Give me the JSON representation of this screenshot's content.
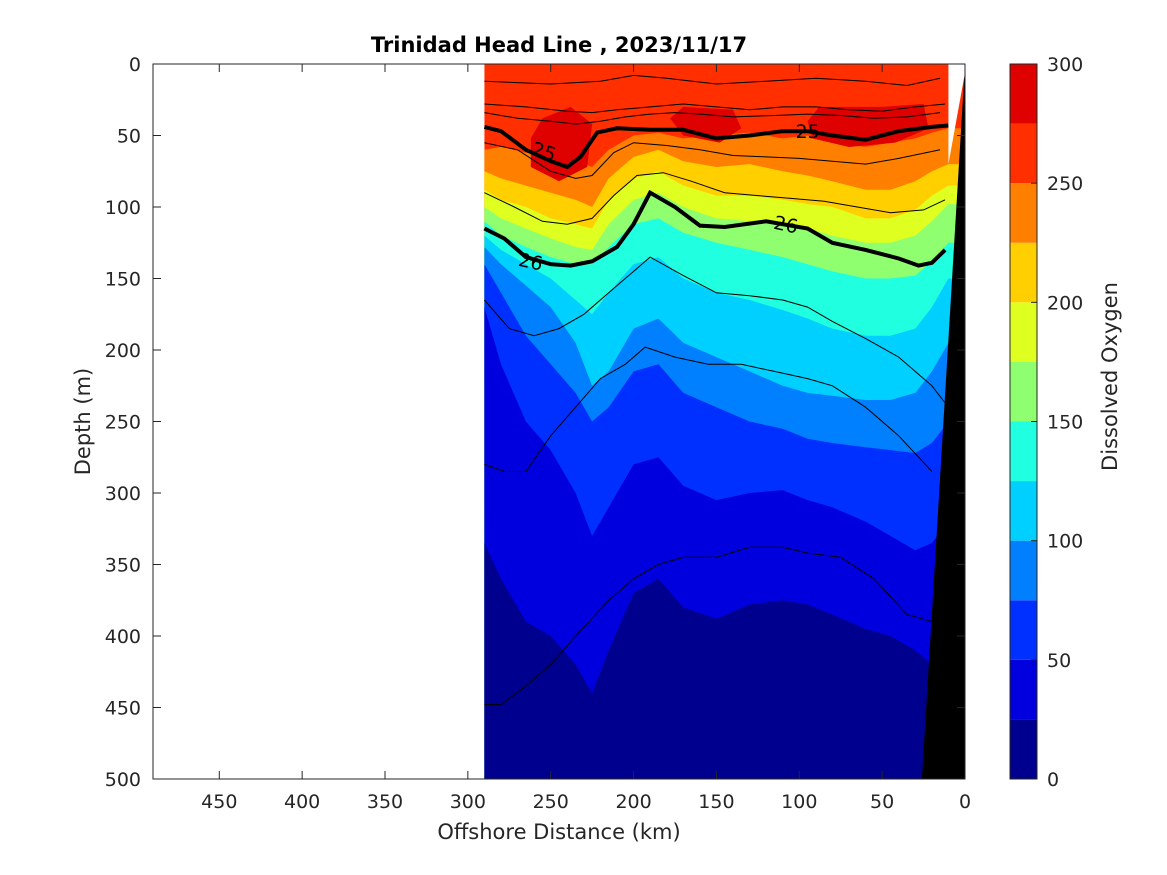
{
  "chart_data": {
    "type": "contour",
    "title": "Trinidad Head Line , 2023/11/17",
    "xlabel": "Offshore Distance (km)",
    "ylabel": "Depth (m)",
    "xlim": [
      490,
      0
    ],
    "ylim": [
      0,
      500
    ],
    "x_reversed": true,
    "y_reversed": true,
    "xticks": [
      "450",
      "400",
      "350",
      "300",
      "250",
      "200",
      "150",
      "100",
      "50",
      "0"
    ],
    "yticks": [
      "0",
      "50",
      "100",
      "150",
      "200",
      "250",
      "300",
      "350",
      "400",
      "450",
      "500"
    ],
    "data_x_range": [
      290,
      10
    ],
    "colorbar": {
      "label": "Dissolved Oxygen",
      "range": [
        0,
        300
      ],
      "ticks": [
        "0",
        "50",
        "100",
        "150",
        "200",
        "250",
        "300"
      ],
      "levels": [
        0,
        25,
        50,
        75,
        100,
        125,
        150,
        175,
        200,
        225,
        250,
        275,
        300
      ],
      "colors": [
        "#00008f",
        "#0000df",
        "#0030ff",
        "#0080ff",
        "#00d0ff",
        "#20ffdf",
        "#8fff70",
        "#dfff20",
        "#ffcf00",
        "#ff7f00",
        "#ff2f00",
        "#df0000"
      ]
    },
    "dissolved_oxygen_boundaries": [
      {
        "level": 250,
        "x": [
          290,
          280,
          265,
          250,
          235,
          225,
          215,
          200,
          185,
          170,
          150,
          130,
          110,
          95,
          80,
          60,
          45,
          30,
          20,
          10
        ],
        "y": [
          60,
          58,
          62,
          65,
          68,
          72,
          60,
          50,
          48,
          52,
          50,
          48,
          52,
          50,
          55,
          58,
          55,
          52,
          48,
          45
        ]
      },
      {
        "level": 225,
        "x": [
          290,
          280,
          265,
          250,
          235,
          225,
          215,
          200,
          185,
          170,
          150,
          130,
          110,
          95,
          80,
          60,
          45,
          30,
          20,
          10
        ],
        "y": [
          75,
          80,
          85,
          90,
          95,
          100,
          80,
          65,
          60,
          68,
          72,
          70,
          75,
          78,
          82,
          88,
          88,
          82,
          75,
          70
        ]
      },
      {
        "level": 200,
        "x": [
          290,
          280,
          265,
          250,
          235,
          225,
          215,
          200,
          185,
          170,
          150,
          130,
          110,
          95,
          80,
          60,
          45,
          30,
          20,
          10
        ],
        "y": [
          88,
          95,
          100,
          108,
          112,
          115,
          95,
          80,
          75,
          85,
          92,
          92,
          95,
          98,
          100,
          108,
          108,
          102,
          92,
          85
        ]
      },
      {
        "level": 175,
        "x": [
          290,
          280,
          265,
          250,
          235,
          225,
          215,
          200,
          185,
          170,
          150,
          130,
          110,
          95,
          80,
          60,
          45,
          30,
          20,
          10
        ],
        "y": [
          100,
          108,
          115,
          122,
          128,
          130,
          112,
          95,
          90,
          100,
          108,
          110,
          112,
          115,
          120,
          125,
          125,
          120,
          110,
          98
        ]
      },
      {
        "level": 150,
        "x": [
          290,
          280,
          265,
          250,
          235,
          225,
          215,
          200,
          185,
          170,
          150,
          130,
          110,
          95,
          80,
          60,
          45,
          30,
          20,
          10
        ],
        "y": [
          110,
          120,
          128,
          135,
          140,
          140,
          128,
          112,
          108,
          118,
          125,
          130,
          135,
          140,
          145,
          150,
          150,
          148,
          138,
          125
        ]
      },
      {
        "level": 125,
        "x": [
          290,
          280,
          265,
          250,
          235,
          225,
          215,
          200,
          185,
          170,
          150,
          130,
          110,
          95,
          80,
          60,
          45,
          30,
          20,
          10
        ],
        "y": [
          120,
          130,
          140,
          150,
          165,
          175,
          160,
          140,
          135,
          150,
          160,
          165,
          172,
          178,
          185,
          190,
          190,
          185,
          170,
          150
        ]
      },
      {
        "level": 100,
        "x": [
          290,
          280,
          265,
          250,
          235,
          225,
          215,
          200,
          185,
          170,
          150,
          130,
          110,
          95,
          80,
          60,
          45,
          30,
          20,
          10
        ],
        "y": [
          128,
          140,
          155,
          170,
          195,
          225,
          215,
          185,
          178,
          195,
          205,
          215,
          225,
          230,
          232,
          235,
          235,
          230,
          215,
          195
        ]
      },
      {
        "level": 75,
        "x": [
          290,
          280,
          265,
          250,
          235,
          225,
          215,
          200,
          185,
          170,
          150,
          130,
          110,
          95,
          80,
          60,
          45,
          30,
          20,
          10
        ],
        "y": [
          140,
          160,
          190,
          210,
          230,
          250,
          240,
          215,
          210,
          230,
          240,
          250,
          255,
          262,
          265,
          268,
          270,
          272,
          265,
          250
        ]
      },
      {
        "level": 50,
        "x": [
          290,
          280,
          265,
          250,
          235,
          225,
          215,
          200,
          185,
          170,
          150,
          130,
          110,
          95,
          80,
          60,
          45,
          30,
          20,
          10
        ],
        "y": [
          170,
          210,
          250,
          270,
          300,
          330,
          310,
          280,
          275,
          295,
          305,
          300,
          298,
          305,
          310,
          320,
          330,
          340,
          335,
          320
        ]
      },
      {
        "level": 25,
        "x": [
          290,
          280,
          265,
          250,
          235,
          225,
          215,
          200,
          185,
          170,
          150,
          130,
          110,
          95,
          80,
          60,
          45,
          30,
          20,
          10
        ],
        "y": [
          335,
          360,
          390,
          400,
          420,
          440,
          410,
          370,
          360,
          380,
          388,
          378,
          375,
          378,
          385,
          395,
          400,
          410,
          420,
          410
        ]
      }
    ],
    "density_contours": [
      {
        "label": "25",
        "bold": true,
        "x": [
          290,
          280,
          265,
          250,
          240,
          232,
          222,
          210,
          190,
          170,
          150,
          130,
          110,
          95,
          80,
          60,
          40,
          20,
          10
        ],
        "y": [
          44,
          47,
          60,
          68,
          72,
          65,
          48,
          45,
          46,
          46,
          52,
          50,
          47,
          47,
          50,
          53,
          47,
          44,
          43
        ]
      },
      {
        "label": "26",
        "bold": true,
        "x": [
          290,
          278,
          265,
          250,
          238,
          225,
          210,
          200,
          190,
          175,
          160,
          145,
          120,
          95,
          80,
          60,
          40,
          28,
          20,
          12
        ],
        "y": [
          115,
          122,
          135,
          140,
          141,
          138,
          128,
          112,
          90,
          100,
          113,
          114,
          110,
          115,
          125,
          130,
          136,
          141,
          139,
          130
        ]
      },
      {
        "label": "",
        "bold": false,
        "x": [
          290,
          275,
          260,
          245,
          230,
          215,
          200,
          190,
          170,
          150,
          130,
          110,
          95,
          80,
          60,
          40,
          20,
          10
        ],
        "y": [
          165,
          185,
          190,
          185,
          175,
          160,
          145,
          135,
          148,
          160,
          162,
          165,
          170,
          180,
          192,
          205,
          225,
          240
        ]
      },
      {
        "label": "",
        "bold": false,
        "x": [
          290,
          278,
          265,
          250,
          235,
          220,
          205,
          193,
          175,
          155,
          135,
          115,
          95,
          80,
          60,
          40,
          20
        ],
        "y": [
          280,
          285,
          285,
          260,
          240,
          220,
          210,
          198,
          205,
          210,
          210,
          215,
          220,
          225,
          240,
          260,
          285
        ]
      },
      {
        "label": "",
        "bold": false,
        "x": [
          290,
          280,
          265,
          250,
          235,
          215,
          200,
          185,
          170,
          150,
          130,
          110,
          95,
          75,
          55,
          35,
          20
        ],
        "y": [
          448,
          448,
          435,
          420,
          400,
          375,
          360,
          350,
          345,
          345,
          338,
          338,
          342,
          345,
          360,
          385,
          390
        ]
      },
      {
        "label": "",
        "bold": false,
        "x": [
          290,
          250,
          220,
          200,
          180,
          150,
          120,
          90,
          60,
          35,
          15
        ],
        "y": [
          12,
          14,
          12,
          8,
          10,
          14,
          12,
          10,
          12,
          15,
          10
        ]
      },
      {
        "label": "",
        "bold": false,
        "x": [
          290,
          265,
          240,
          225,
          210,
          190,
          170,
          150,
          130,
          110,
          90,
          70,
          50,
          30,
          12
        ],
        "y": [
          28,
          30,
          33,
          34,
          32,
          30,
          28,
          30,
          32,
          30,
          30,
          32,
          33,
          30,
          28
        ]
      },
      {
        "label": "",
        "bold": false,
        "x": [
          290,
          270,
          250,
          235,
          220,
          205,
          190,
          175,
          160,
          140,
          115,
          95,
          75,
          55,
          35,
          15
        ],
        "y": [
          34,
          38,
          40,
          42,
          40,
          37,
          35,
          34,
          35,
          37,
          36,
          35,
          36,
          38,
          37,
          34
        ]
      },
      {
        "label": "",
        "bold": false,
        "x": [
          290,
          270,
          250,
          235,
          225,
          212,
          200,
          180,
          160,
          140,
          120,
          100,
          80,
          60,
          40,
          15
        ],
        "y": [
          55,
          60,
          75,
          80,
          78,
          62,
          55,
          57,
          60,
          64,
          65,
          66,
          68,
          70,
          66,
          60
        ]
      },
      {
        "label": "",
        "bold": false,
        "x": [
          290,
          272,
          255,
          240,
          225,
          212,
          198,
          182,
          165,
          145,
          125,
          105,
          85,
          65,
          45,
          25,
          12
        ],
        "y": [
          90,
          100,
          110,
          112,
          108,
          92,
          78,
          76,
          82,
          90,
          92,
          94,
          96,
          100,
          104,
          102,
          95
        ]
      }
    ],
    "bathymetry": {
      "x": [
        0,
        0,
        26
      ],
      "y": [
        0,
        500,
        500
      ],
      "color": "#000000"
    }
  }
}
